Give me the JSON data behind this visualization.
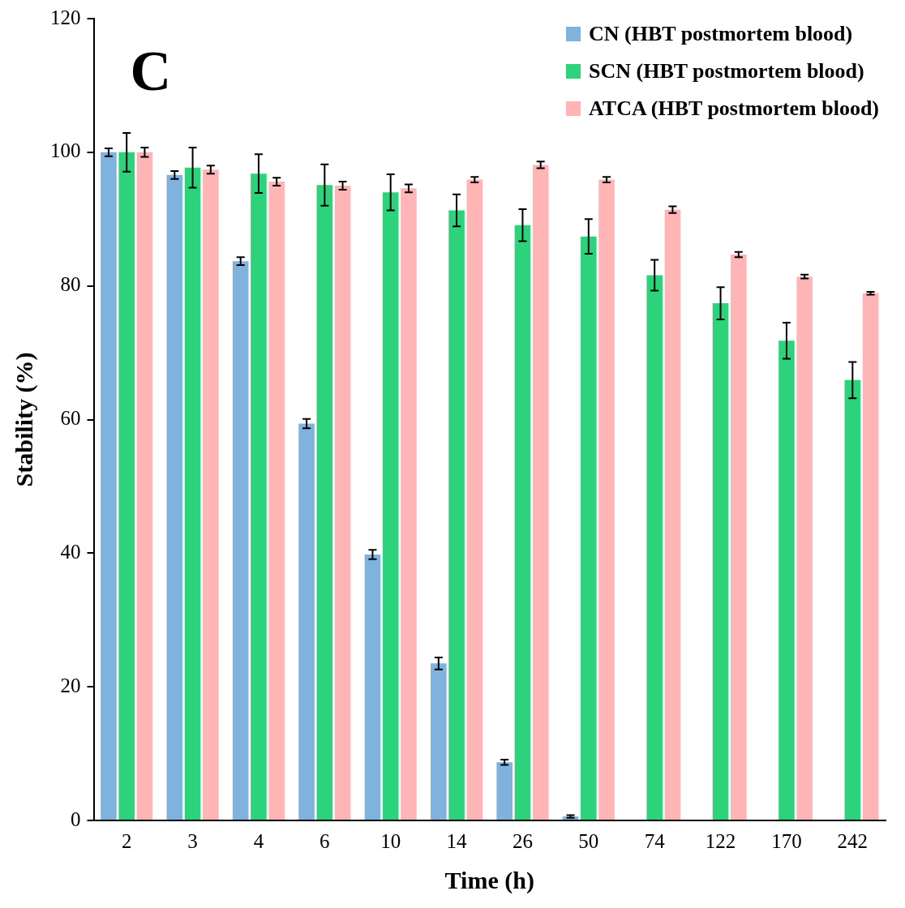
{
  "chart_data": {
    "type": "bar",
    "xlabel": "Time (h)",
    "ylabel": "Stability (%)",
    "annotations": [
      "C"
    ],
    "categories": [
      "2",
      "3",
      "4",
      "6",
      "10",
      "14",
      "26",
      "50",
      "74",
      "122",
      "170",
      "242"
    ],
    "series": [
      {
        "name": "CN (HBT postmortem blood)",
        "color": "#7fb2dc",
        "values": [
          100,
          96.6,
          83.7,
          59.4,
          39.8,
          23.5,
          8.7,
          0.6,
          null,
          null,
          null,
          null
        ],
        "errors": [
          0.6,
          0.6,
          0.6,
          0.7,
          0.7,
          0.9,
          0.4,
          0.2,
          null,
          null,
          null,
          null
        ]
      },
      {
        "name": "SCN (HBT postmortem blood)",
        "color": "#2dd37a",
        "values": [
          100,
          97.7,
          96.8,
          95.1,
          94,
          91.3,
          89.1,
          87.4,
          81.6,
          77.4,
          71.8,
          65.9
        ],
        "errors": [
          2.9,
          3,
          2.9,
          3.1,
          2.7,
          2.4,
          2.4,
          2.6,
          2.3,
          2.4,
          2.7,
          2.7
        ]
      },
      {
        "name": "ATCA (HBT postmortem blood)",
        "color": "#ffb5b5",
        "values": [
          100,
          97.4,
          95.6,
          95,
          94.6,
          95.9,
          98.1,
          95.9,
          91.4,
          84.7,
          81.4,
          78.9
        ],
        "errors": [
          0.7,
          0.6,
          0.6,
          0.6,
          0.6,
          0.4,
          0.5,
          0.4,
          0.5,
          0.4,
          0.3,
          0.2
        ]
      }
    ],
    "ylim": [
      0,
      120
    ],
    "yticks": [
      0,
      20,
      40,
      60,
      80,
      100,
      120
    ],
    "grid": false,
    "legend": "top right"
  }
}
